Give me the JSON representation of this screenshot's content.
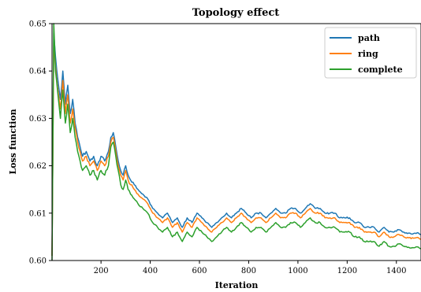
{
  "chart_data": {
    "type": "line",
    "title": "Topology effect",
    "xlabel": "Iteration",
    "ylabel": "Loss function",
    "xlim": [
      1,
      1500
    ],
    "ylim": [
      0.6,
      0.65
    ],
    "xticks": [
      200,
      400,
      600,
      800,
      1000,
      1200,
      1400
    ],
    "yticks": [
      0.6,
      0.61,
      0.62,
      0.63,
      0.64,
      0.65
    ],
    "ytick_labels": [
      "0.60",
      "0.61",
      "0.62",
      "0.63",
      "0.64",
      "0.65"
    ],
    "grid": false,
    "legend_position": "top-right",
    "series": [
      {
        "name": "path",
        "color": "#1f77b4",
        "x": [
          1,
          8,
          15,
          25,
          35,
          45,
          55,
          65,
          75,
          85,
          95,
          105,
          115,
          125,
          140,
          155,
          170,
          185,
          200,
          215,
          230,
          240,
          250,
          260,
          270,
          280,
          290,
          300,
          310,
          320,
          335,
          350,
          370,
          390,
          410,
          430,
          450,
          470,
          490,
          510,
          530,
          550,
          570,
          590,
          610,
          630,
          650,
          670,
          690,
          710,
          730,
          750,
          770,
          790,
          810,
          830,
          850,
          870,
          890,
          910,
          930,
          950,
          970,
          990,
          1010,
          1030,
          1050,
          1070,
          1090,
          1110,
          1130,
          1150,
          1170,
          1190,
          1210,
          1230,
          1250,
          1270,
          1290,
          1310,
          1330,
          1350,
          1370,
          1390,
          1410,
          1430,
          1450,
          1470,
          1490,
          1500
        ],
        "y": [
          0.601,
          0.648,
          0.643,
          0.638,
          0.634,
          0.64,
          0.633,
          0.637,
          0.631,
          0.634,
          0.629,
          0.626,
          0.624,
          0.622,
          0.623,
          0.621,
          0.622,
          0.62,
          0.622,
          0.621,
          0.623,
          0.626,
          0.627,
          0.624,
          0.621,
          0.619,
          0.618,
          0.62,
          0.618,
          0.617,
          0.616,
          0.615,
          0.614,
          0.613,
          0.611,
          0.61,
          0.609,
          0.61,
          0.608,
          0.609,
          0.607,
          0.609,
          0.608,
          0.61,
          0.609,
          0.608,
          0.607,
          0.608,
          0.609,
          0.61,
          0.609,
          0.61,
          0.611,
          0.61,
          0.609,
          0.61,
          0.61,
          0.609,
          0.61,
          0.611,
          0.61,
          0.61,
          0.611,
          0.611,
          0.61,
          0.611,
          0.612,
          0.611,
          0.611,
          0.61,
          0.61,
          0.61,
          0.609,
          0.609,
          0.609,
          0.608,
          0.608,
          0.607,
          0.607,
          0.607,
          0.606,
          0.607,
          0.606,
          0.606,
          0.6065,
          0.606,
          0.6058,
          0.6057,
          0.6058,
          0.6055
        ]
      },
      {
        "name": "ring",
        "color": "#ff7f0e",
        "x": [
          1,
          8,
          15,
          25,
          35,
          45,
          55,
          65,
          75,
          85,
          95,
          105,
          115,
          125,
          140,
          155,
          170,
          185,
          200,
          215,
          230,
          240,
          250,
          260,
          270,
          280,
          290,
          300,
          310,
          320,
          335,
          350,
          370,
          390,
          410,
          430,
          450,
          470,
          490,
          510,
          530,
          550,
          570,
          590,
          610,
          630,
          650,
          670,
          690,
          710,
          730,
          750,
          770,
          790,
          810,
          830,
          850,
          870,
          890,
          910,
          930,
          950,
          970,
          990,
          1010,
          1030,
          1050,
          1070,
          1090,
          1110,
          1130,
          1150,
          1170,
          1190,
          1210,
          1230,
          1250,
          1270,
          1290,
          1310,
          1330,
          1350,
          1370,
          1390,
          1410,
          1430,
          1450,
          1470,
          1490,
          1500
        ],
        "y": [
          0.601,
          0.646,
          0.641,
          0.636,
          0.632,
          0.638,
          0.631,
          0.635,
          0.629,
          0.632,
          0.628,
          0.625,
          0.623,
          0.621,
          0.622,
          0.62,
          0.621,
          0.619,
          0.621,
          0.62,
          0.622,
          0.625,
          0.626,
          0.623,
          0.62,
          0.618,
          0.617,
          0.619,
          0.617,
          0.616,
          0.615,
          0.614,
          0.613,
          0.612,
          0.61,
          0.609,
          0.608,
          0.609,
          0.607,
          0.608,
          0.606,
          0.608,
          0.607,
          0.609,
          0.608,
          0.607,
          0.606,
          0.607,
          0.608,
          0.609,
          0.608,
          0.609,
          0.61,
          0.609,
          0.608,
          0.609,
          0.609,
          0.608,
          0.609,
          0.61,
          0.609,
          0.609,
          0.61,
          0.61,
          0.609,
          0.61,
          0.611,
          0.61,
          0.61,
          0.609,
          0.609,
          0.609,
          0.608,
          0.608,
          0.608,
          0.607,
          0.607,
          0.606,
          0.606,
          0.606,
          0.605,
          0.606,
          0.605,
          0.605,
          0.6055,
          0.605,
          0.6048,
          0.6047,
          0.6048,
          0.6045
        ]
      },
      {
        "name": "complete",
        "color": "#2ca02c",
        "x": [
          1,
          8,
          15,
          25,
          35,
          45,
          55,
          65,
          75,
          85,
          95,
          105,
          115,
          125,
          140,
          155,
          170,
          185,
          200,
          215,
          230,
          240,
          250,
          260,
          270,
          280,
          290,
          300,
          310,
          320,
          335,
          350,
          370,
          390,
          410,
          430,
          450,
          470,
          490,
          510,
          530,
          550,
          570,
          590,
          610,
          630,
          650,
          670,
          690,
          710,
          730,
          750,
          770,
          790,
          810,
          830,
          850,
          870,
          890,
          910,
          930,
          950,
          970,
          990,
          1010,
          1030,
          1050,
          1070,
          1090,
          1110,
          1130,
          1150,
          1170,
          1190,
          1210,
          1230,
          1250,
          1270,
          1290,
          1310,
          1330,
          1350,
          1370,
          1390,
          1410,
          1430,
          1450,
          1470,
          1490,
          1500
        ],
        "y": [
          0.6,
          0.65,
          0.64,
          0.635,
          0.63,
          0.636,
          0.629,
          0.633,
          0.627,
          0.63,
          0.626,
          0.623,
          0.621,
          0.619,
          0.62,
          0.618,
          0.619,
          0.617,
          0.619,
          0.618,
          0.62,
          0.624,
          0.625,
          0.622,
          0.619,
          0.616,
          0.615,
          0.617,
          0.615,
          0.614,
          0.613,
          0.612,
          0.611,
          0.61,
          0.608,
          0.607,
          0.606,
          0.607,
          0.605,
          0.606,
          0.604,
          0.606,
          0.605,
          0.607,
          0.606,
          0.605,
          0.604,
          0.605,
          0.606,
          0.607,
          0.606,
          0.607,
          0.608,
          0.607,
          0.606,
          0.607,
          0.607,
          0.606,
          0.607,
          0.608,
          0.607,
          0.607,
          0.608,
          0.608,
          0.607,
          0.608,
          0.609,
          0.608,
          0.608,
          0.607,
          0.607,
          0.607,
          0.606,
          0.606,
          0.606,
          0.605,
          0.605,
          0.604,
          0.604,
          0.604,
          0.603,
          0.604,
          0.603,
          0.603,
          0.6035,
          0.603,
          0.6028,
          0.6027,
          0.6028,
          0.6025
        ]
      }
    ]
  }
}
